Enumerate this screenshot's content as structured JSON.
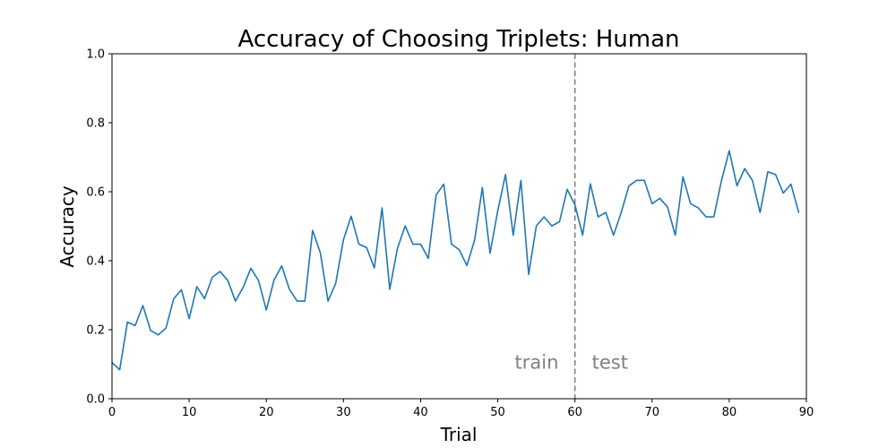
{
  "chart_data": {
    "type": "line",
    "title": "Accuracy of Choosing Triplets: Human",
    "xlabel": "Trial",
    "ylabel": "Accuracy",
    "xlim": [
      0,
      90
    ],
    "ylim": [
      0.0,
      1.0
    ],
    "xticks": [
      "0",
      "10",
      "20",
      "30",
      "40",
      "50",
      "60",
      "70",
      "80",
      "90"
    ],
    "yticks": [
      "0.0",
      "0.2",
      "0.4",
      "0.6",
      "0.8",
      "1.0"
    ],
    "grid": false,
    "series": [
      {
        "color": "#1f77b4",
        "x": [
          0,
          1,
          2,
          3,
          4,
          5,
          6,
          7,
          8,
          9,
          10,
          11,
          12,
          13,
          14,
          15,
          16,
          17,
          18,
          19,
          20,
          21,
          22,
          23,
          24,
          25,
          26,
          27,
          28,
          29,
          30,
          31,
          32,
          33,
          34,
          35,
          36,
          37,
          38,
          39,
          40,
          41,
          42,
          43,
          44,
          45,
          46,
          47,
          48,
          49,
          50,
          51,
          52,
          53,
          54,
          55,
          56,
          57,
          58,
          59,
          60,
          61,
          62,
          63,
          64,
          65,
          66,
          67,
          68,
          69,
          70,
          71,
          72,
          73,
          74,
          75,
          76,
          77,
          78,
          79,
          80,
          81,
          82,
          83,
          84,
          85,
          86,
          87,
          88,
          89
        ],
        "values": [
          0.105,
          0.084,
          0.222,
          0.212,
          0.27,
          0.198,
          0.185,
          0.205,
          0.29,
          0.316,
          0.232,
          0.325,
          0.29,
          0.352,
          0.369,
          0.343,
          0.283,
          0.323,
          0.378,
          0.342,
          0.257,
          0.344,
          0.385,
          0.317,
          0.283,
          0.283,
          0.488,
          0.423,
          0.283,
          0.335,
          0.461,
          0.529,
          0.448,
          0.438,
          0.379,
          0.553,
          0.317,
          0.436,
          0.501,
          0.448,
          0.448,
          0.407,
          0.59,
          0.622,
          0.448,
          0.432,
          0.386,
          0.46,
          0.612,
          0.422,
          0.545,
          0.65,
          0.474,
          0.633,
          0.36,
          0.501,
          0.527,
          0.501,
          0.513,
          0.607,
          0.562,
          0.474,
          0.623,
          0.527,
          0.54,
          0.474,
          0.54,
          0.617,
          0.633,
          0.633,
          0.565,
          0.581,
          0.556,
          0.474,
          0.643,
          0.565,
          0.553,
          0.527,
          0.527,
          0.633,
          0.719,
          0.617,
          0.667,
          0.633,
          0.54,
          0.658,
          0.65,
          0.596,
          0.622,
          0.54
        ]
      }
    ],
    "vline": {
      "x": 60,
      "color": "#808080",
      "style": "dashed"
    },
    "annotations": [
      {
        "text": "train",
        "x": 52.2,
        "y": 0.105,
        "color": "#808080"
      },
      {
        "text": "test",
        "x": 62.2,
        "y": 0.105,
        "color": "#808080"
      }
    ]
  }
}
